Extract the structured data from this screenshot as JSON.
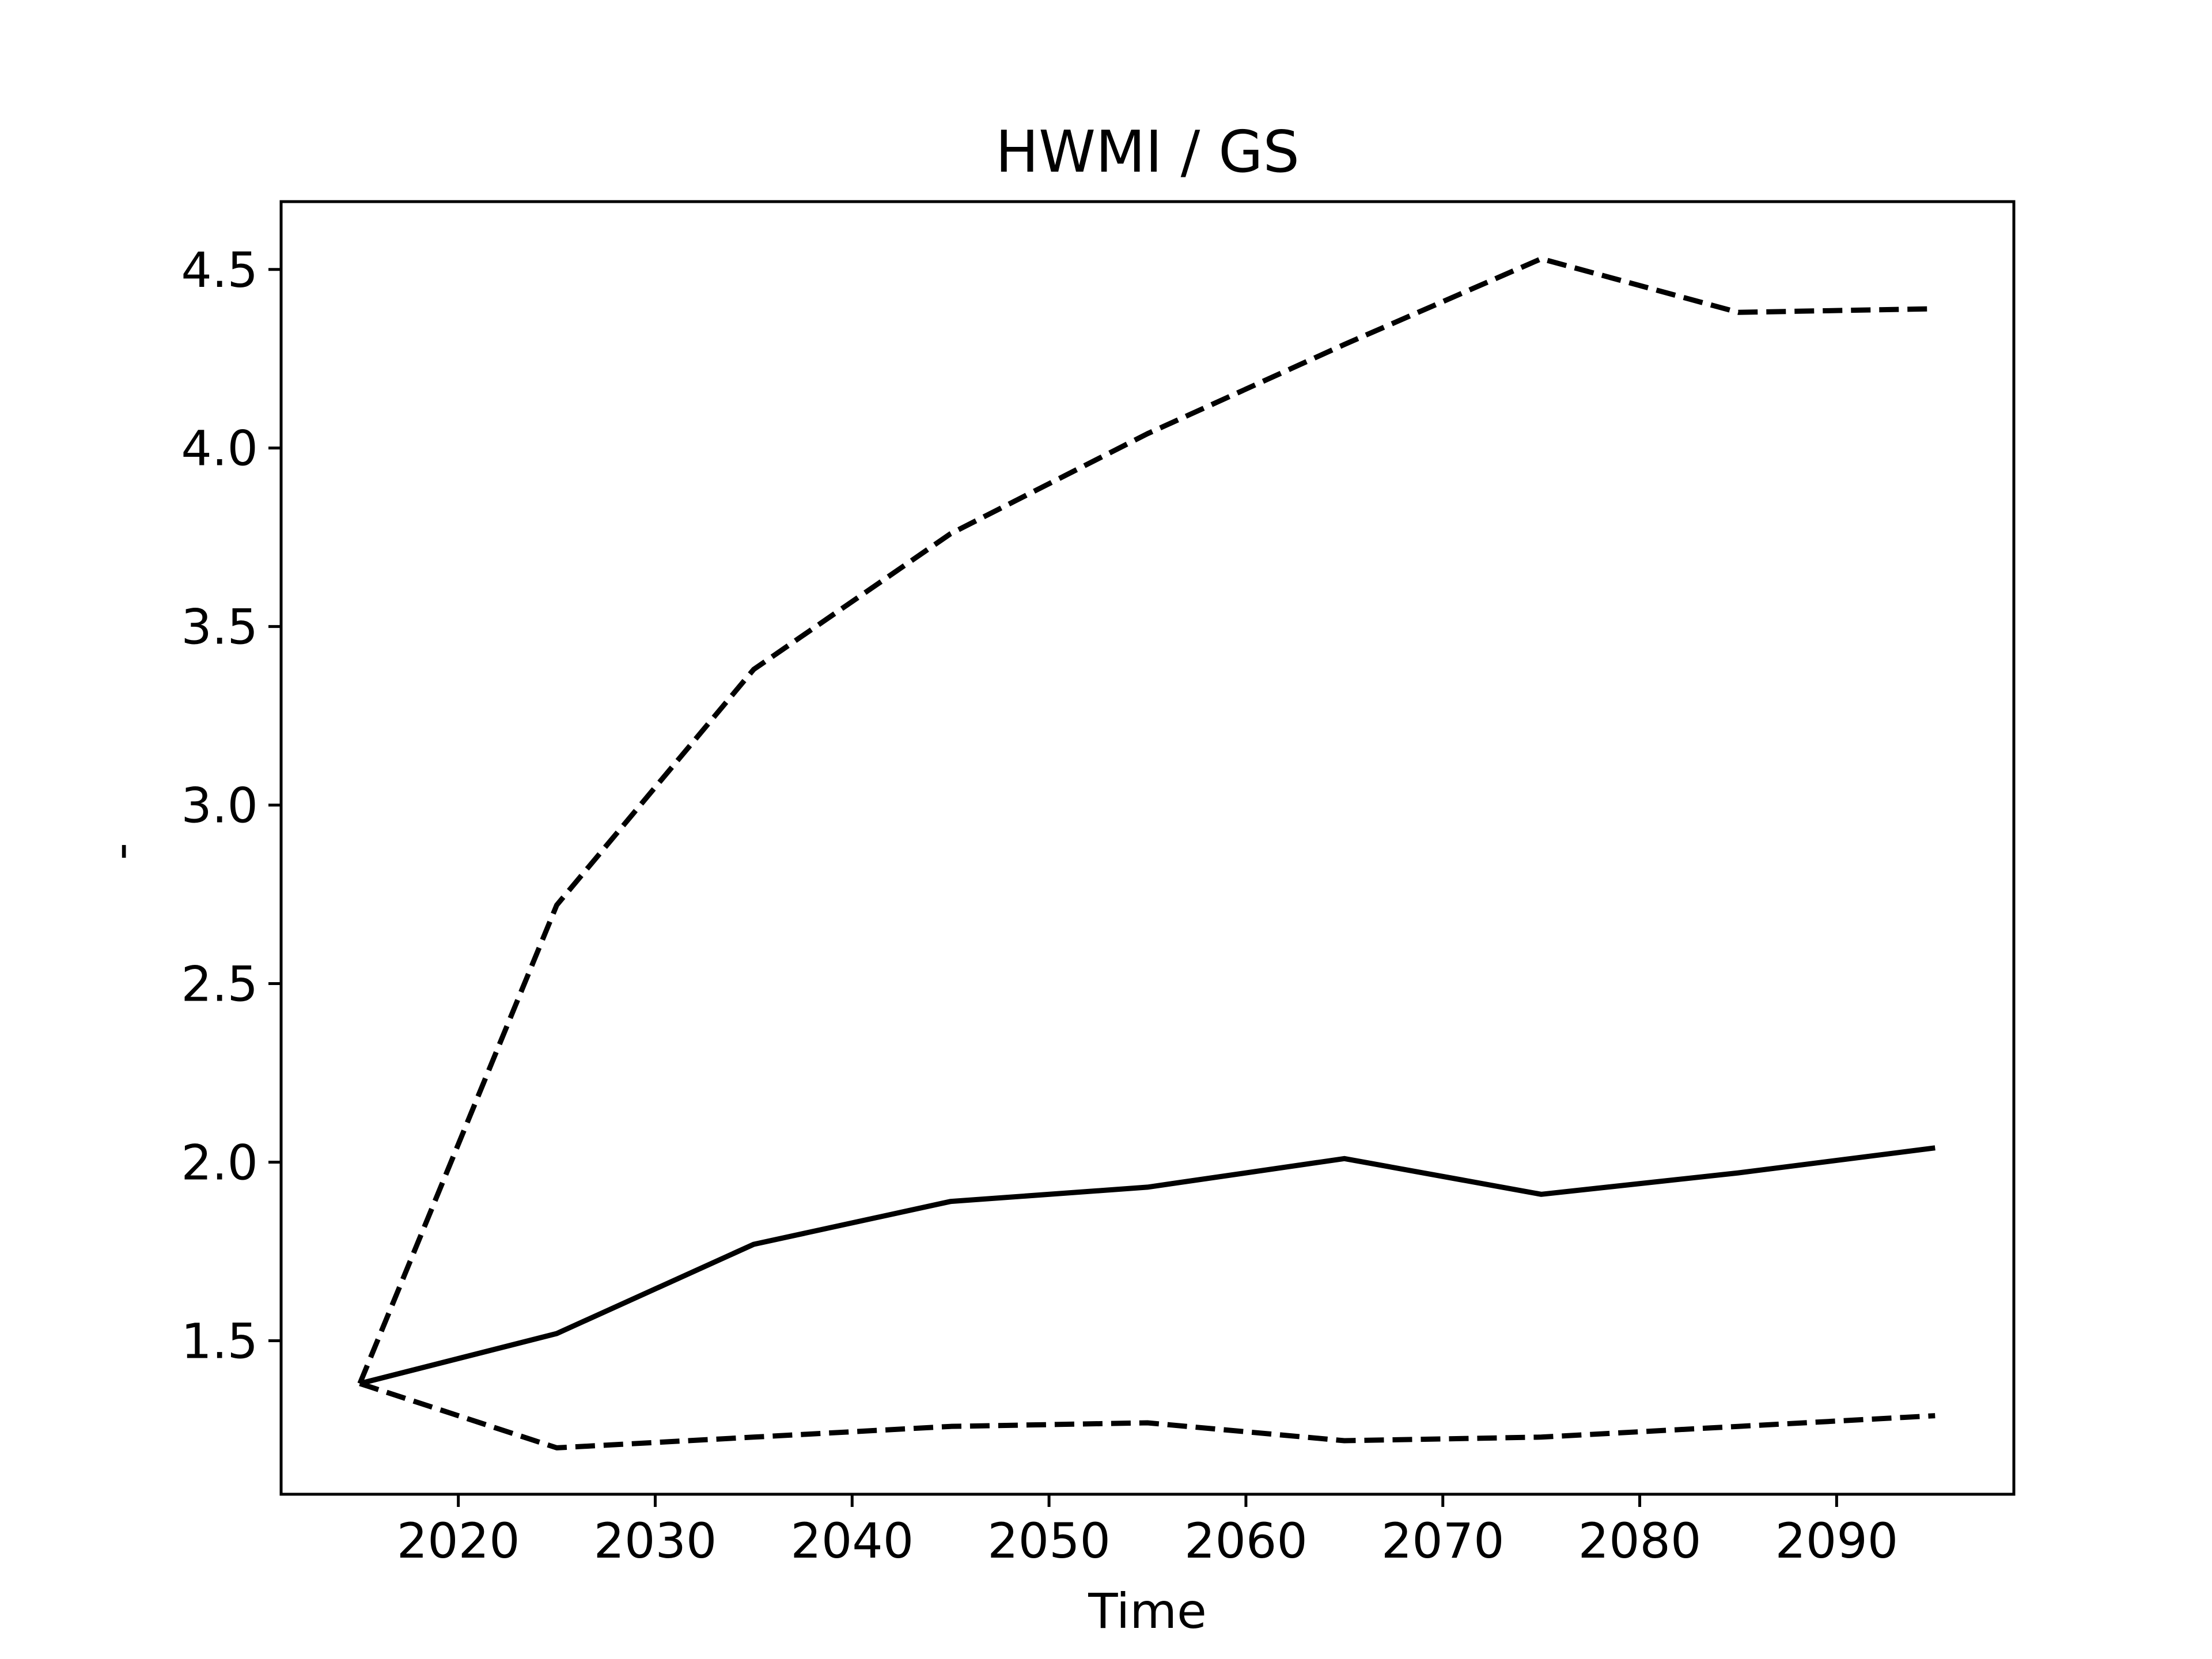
{
  "chart_data": {
    "type": "line",
    "title": "HWMI / GS",
    "xlabel": "Time",
    "ylabel": "-",
    "xlim": [
      2011,
      2099
    ],
    "ylim": [
      1.07,
      4.69
    ],
    "xticks": [
      2020,
      2030,
      2040,
      2050,
      2060,
      2070,
      2080,
      2090
    ],
    "xtick_labels": [
      "2020",
      "2030",
      "2040",
      "2050",
      "2060",
      "2070",
      "2080",
      "2090"
    ],
    "yticks": [
      1.5,
      2.0,
      2.5,
      3.0,
      3.5,
      4.0,
      4.5
    ],
    "ytick_labels": [
      "1.5",
      "2.0",
      "2.5",
      "3.0",
      "3.5",
      "4.0",
      "4.5"
    ],
    "grid": false,
    "x": [
      2015,
      2025,
      2035,
      2045,
      2055,
      2065,
      2075,
      2085,
      2095
    ],
    "series": [
      {
        "style": "dashed",
        "color": "#000000",
        "values": [
          1.38,
          2.72,
          3.38,
          3.76,
          4.04,
          4.29,
          4.53,
          4.38,
          4.39
        ]
      },
      {
        "style": "solid",
        "color": "#000000",
        "values": [
          1.38,
          1.52,
          1.77,
          1.89,
          1.93,
          2.01,
          1.91,
          1.97,
          2.04
        ]
      },
      {
        "style": "dashed",
        "color": "#000000",
        "values": [
          1.38,
          1.2,
          1.23,
          1.26,
          1.27,
          1.22,
          1.23,
          1.26,
          1.29
        ]
      }
    ]
  }
}
